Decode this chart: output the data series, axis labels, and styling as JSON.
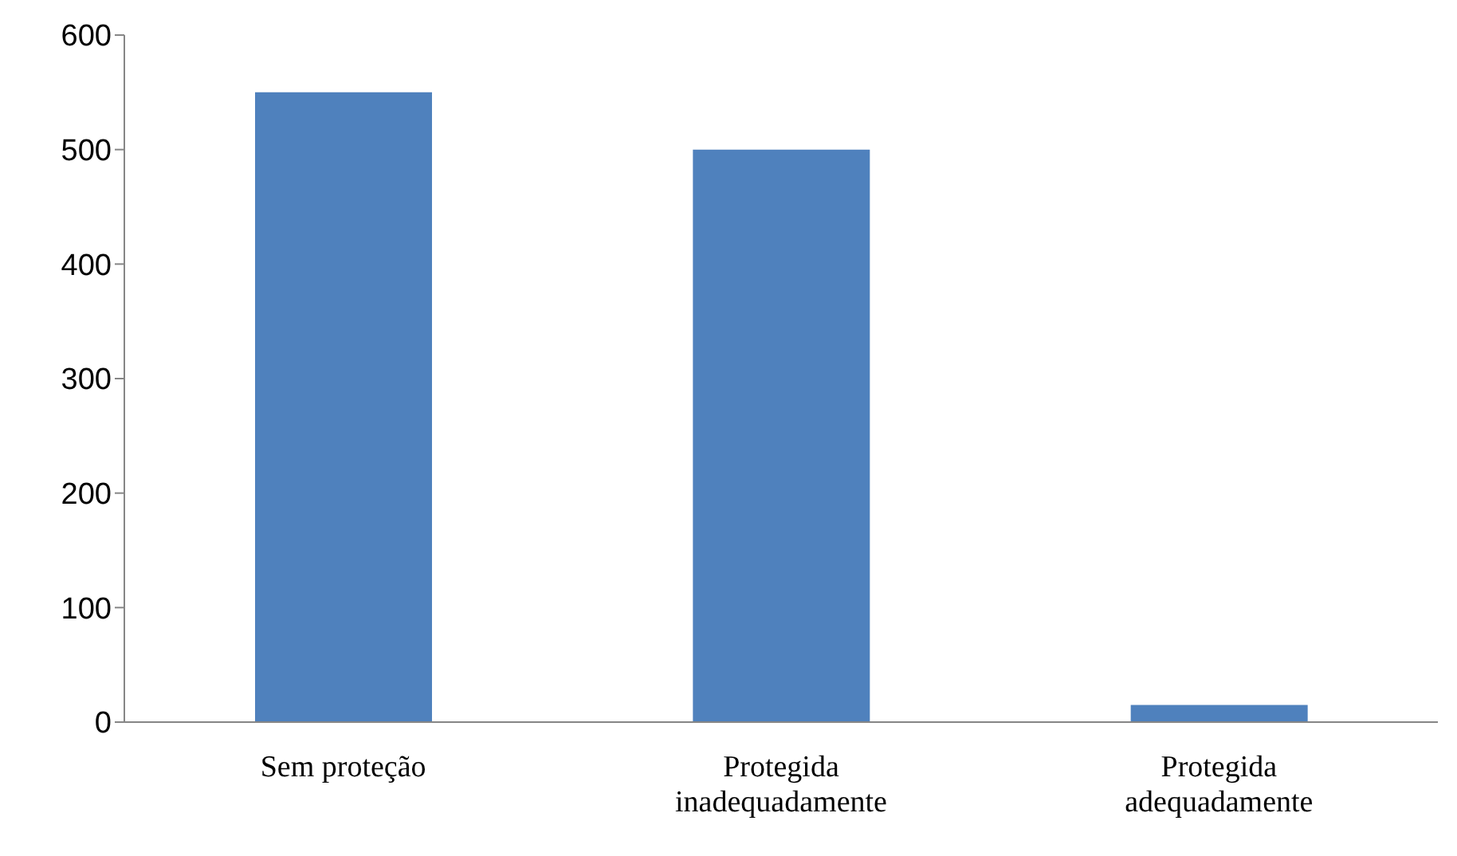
{
  "chart_data": {
    "type": "bar",
    "categories": [
      "Sem proteção",
      "Protegida inadequadamente",
      "Protegida adequadamente"
    ],
    "values": [
      550,
      500,
      15
    ],
    "color": "#4f81bd",
    "ylim": [
      0,
      600
    ],
    "yticks": [
      0,
      100,
      200,
      300,
      400,
      500,
      600
    ],
    "grid": false
  }
}
